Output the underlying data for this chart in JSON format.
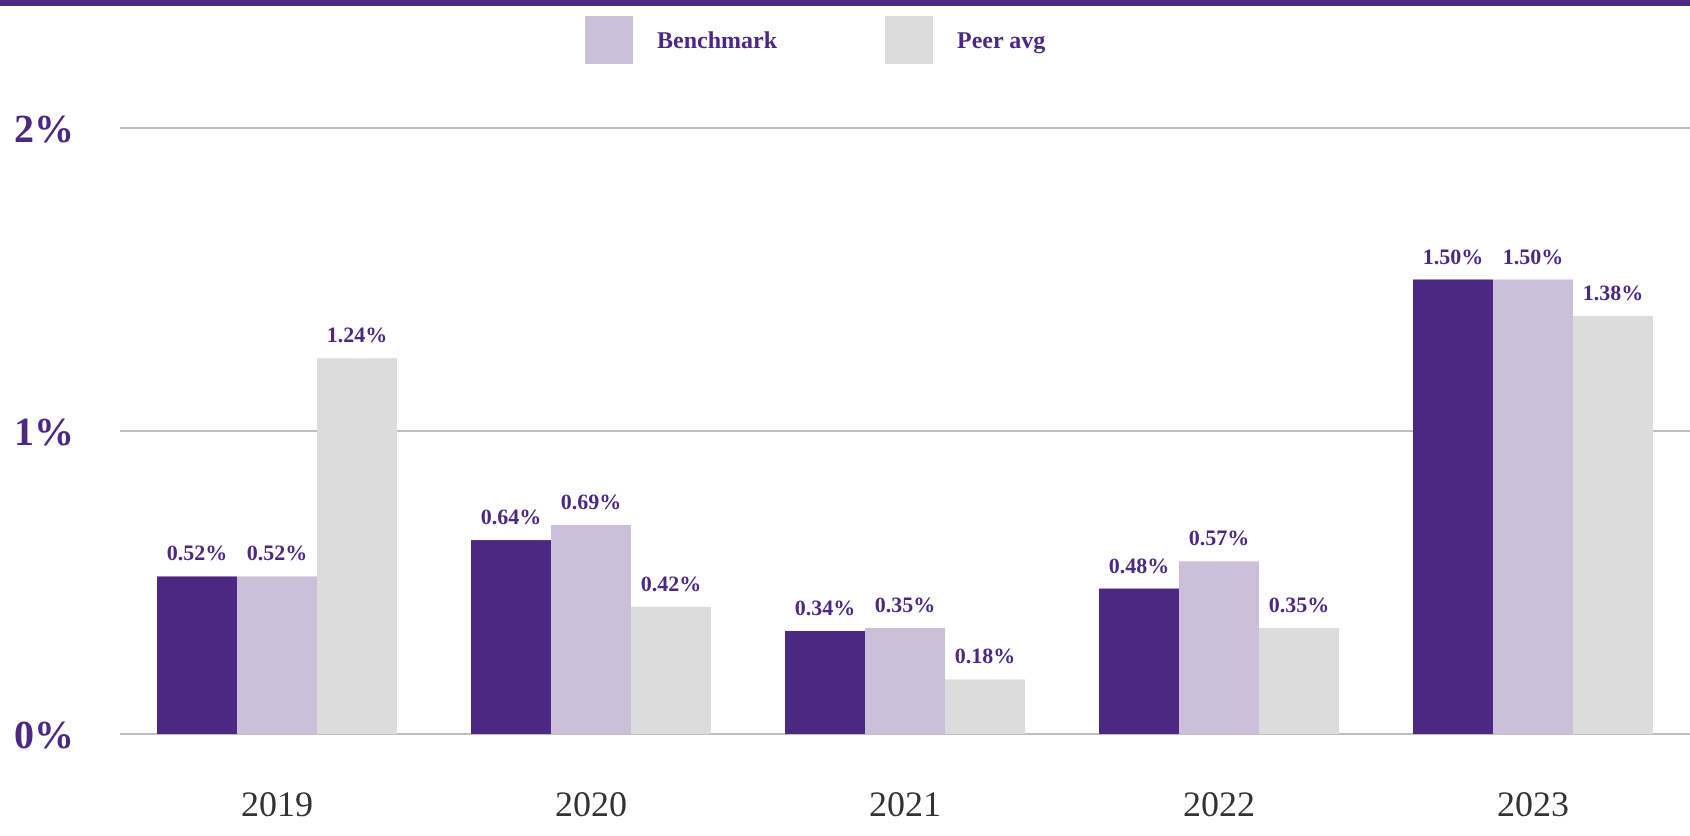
{
  "chart_data": {
    "type": "bar",
    "categories": [
      "2019",
      "2020",
      "2021",
      "2022",
      "2023"
    ],
    "series": [
      {
        "color": "#4b2882",
        "values": [
          0.52,
          0.64,
          0.34,
          0.48,
          1.5
        ]
      },
      {
        "name": "Benchmark",
        "color": "#cbbfda",
        "values": [
          0.52,
          0.69,
          0.35,
          0.57,
          1.5
        ]
      },
      {
        "name": "Peer avg",
        "color": "#dcdcdc",
        "values": [
          1.24,
          0.42,
          0.18,
          0.35,
          1.38
        ]
      }
    ],
    "value_labels": [
      [
        "0.52%",
        "0.64%",
        "0.34%",
        "0.48%",
        "1.50%"
      ],
      [
        "0.52%",
        "0.69%",
        "0.35%",
        "0.57%",
        "1.50%"
      ],
      [
        "1.24%",
        "0.42%",
        "0.18%",
        "0.35%",
        "1.38%"
      ]
    ],
    "ylim": [
      0,
      2
    ],
    "yticks": [
      {
        "value": 0,
        "label": "0%"
      },
      {
        "value": 1,
        "label": "1%"
      },
      {
        "value": 2,
        "label": "2%"
      }
    ],
    "grid": "y",
    "legend": "top"
  }
}
